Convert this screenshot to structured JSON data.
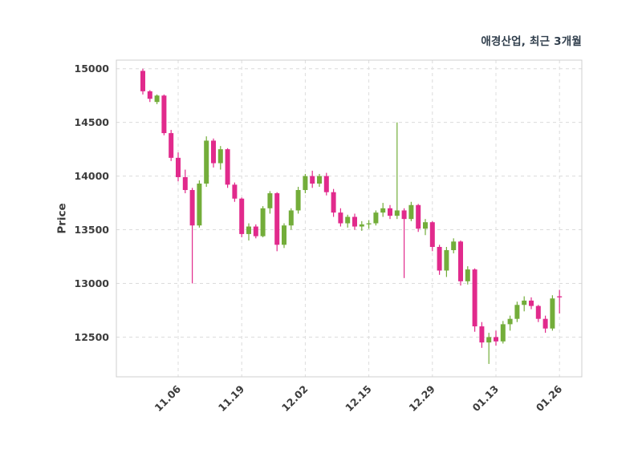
{
  "chart_data": {
    "type": "candlestick",
    "title": "애경산업, 최근 3개월",
    "ylabel": "Price",
    "xlabel": "",
    "legend": "none",
    "grid": "dashed-both-axes",
    "y_ticks": [
      12500,
      13000,
      13500,
      14000,
      14500,
      15000
    ],
    "ylim": [
      12130,
      15080
    ],
    "x_tick_labels": [
      "11.06",
      "11.19",
      "12.02",
      "12.15",
      "12.29",
      "01.13",
      "01.26"
    ],
    "x_tick_indices": [
      5,
      14,
      23,
      32,
      41,
      50,
      59
    ],
    "colors": {
      "up": "#73ad3a",
      "down": "#e12a8c",
      "grid": "#dcdcdc",
      "spine": "#cfcfcf",
      "axis_text": "#3c3c3c",
      "title_text": "#32404e",
      "plot_background": "#ffffff"
    },
    "candles_format": [
      "open",
      "high",
      "low",
      "close"
    ],
    "candles": [
      [
        14980,
        15000,
        14760,
        14790
      ],
      [
        14790,
        14800,
        14690,
        14720
      ],
      [
        14690,
        14760,
        14670,
        14750
      ],
      [
        14750,
        14760,
        14380,
        14400
      ],
      [
        14400,
        14430,
        14140,
        14170
      ],
      [
        14170,
        14220,
        13950,
        13990
      ],
      [
        13990,
        14060,
        13840,
        13870
      ],
      [
        13870,
        13890,
        13000,
        13540
      ],
      [
        13540,
        13960,
        13520,
        13930
      ],
      [
        13930,
        14370,
        13900,
        14330
      ],
      [
        14330,
        14350,
        14080,
        14120
      ],
      [
        14120,
        14280,
        14060,
        14250
      ],
      [
        14250,
        14260,
        13890,
        13920
      ],
      [
        13920,
        13940,
        13760,
        13790
      ],
      [
        13790,
        13800,
        13430,
        13460
      ],
      [
        13460,
        13560,
        13400,
        13530
      ],
      [
        13530,
        13550,
        13420,
        13440
      ],
      [
        13440,
        13720,
        13430,
        13700
      ],
      [
        13700,
        13860,
        13650,
        13840
      ],
      [
        13840,
        13850,
        13300,
        13360
      ],
      [
        13360,
        13560,
        13330,
        13540
      ],
      [
        13540,
        13700,
        13500,
        13680
      ],
      [
        13680,
        13900,
        13650,
        13870
      ],
      [
        13870,
        14020,
        13840,
        14000
      ],
      [
        14000,
        14050,
        13890,
        13930
      ],
      [
        13930,
        14020,
        13900,
        14000
      ],
      [
        14000,
        14030,
        13820,
        13850
      ],
      [
        13850,
        13880,
        13620,
        13660
      ],
      [
        13660,
        13700,
        13530,
        13560
      ],
      [
        13560,
        13640,
        13520,
        13620
      ],
      [
        13620,
        13650,
        13500,
        13530
      ],
      [
        13530,
        13580,
        13490,
        13550
      ],
      [
        13550,
        13590,
        13510,
        13560
      ],
      [
        13560,
        13680,
        13540,
        13660
      ],
      [
        13660,
        13750,
        13620,
        13700
      ],
      [
        13700,
        13730,
        13600,
        13630
      ],
      [
        13630,
        14500,
        13600,
        13680
      ],
      [
        13680,
        13700,
        13050,
        13600
      ],
      [
        13600,
        13760,
        13580,
        13730
      ],
      [
        13730,
        13740,
        13480,
        13510
      ],
      [
        13510,
        13600,
        13450,
        13570
      ],
      [
        13570,
        13580,
        13300,
        13340
      ],
      [
        13340,
        13360,
        13080,
        13120
      ],
      [
        13120,
        13340,
        13060,
        13310
      ],
      [
        13310,
        13420,
        13280,
        13390
      ],
      [
        13390,
        13400,
        12980,
        13020
      ],
      [
        13020,
        13160,
        12990,
        13130
      ],
      [
        13130,
        13140,
        12550,
        12600
      ],
      [
        12600,
        12640,
        12400,
        12450
      ],
      [
        12450,
        12540,
        12250,
        12500
      ],
      [
        12500,
        12560,
        12420,
        12460
      ],
      [
        12460,
        12650,
        12440,
        12620
      ],
      [
        12620,
        12700,
        12560,
        12670
      ],
      [
        12670,
        12830,
        12640,
        12800
      ],
      [
        12800,
        12880,
        12740,
        12840
      ],
      [
        12840,
        12870,
        12760,
        12790
      ],
      [
        12790,
        12800,
        12640,
        12670
      ],
      [
        12670,
        12700,
        12540,
        12580
      ],
      [
        12580,
        12890,
        12560,
        12860
      ],
      [
        12880,
        12940,
        12720,
        12870
      ]
    ]
  }
}
